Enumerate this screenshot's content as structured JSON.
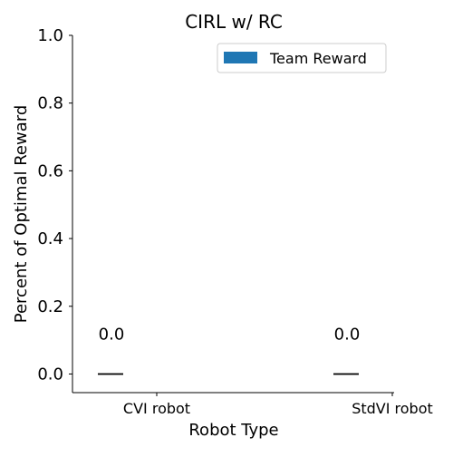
{
  "chart_data": {
    "type": "bar",
    "title": "CIRL w/ RC",
    "xlabel": "Robot Type",
    "ylabel": "Percent of Optimal Reward",
    "categories": [
      "CVI robot",
      "StdVI robot"
    ],
    "series": [
      {
        "name": "Team Reward",
        "values": [
          0.0,
          0.0
        ],
        "color": "#1f77b4"
      }
    ],
    "error_bars": [
      0.0,
      0.0
    ],
    "error_bar_color": "#000000",
    "data_labels": [
      "0.0",
      "0.0"
    ],
    "ylim": [
      -0.055,
      1.0
    ],
    "yticks": [
      0.0,
      0.2,
      0.4,
      0.6,
      0.8,
      1.0
    ],
    "ytick_labels": [
      "0.0",
      "0.2",
      "0.4",
      "0.6",
      "0.8",
      "1.0"
    ],
    "legend_position": "top-right",
    "grid": false,
    "spines": [
      "left",
      "bottom"
    ]
  }
}
